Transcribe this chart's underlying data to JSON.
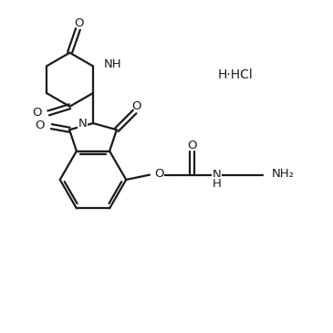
{
  "background_color": "#ffffff",
  "line_color": "#1a1a1a",
  "line_width": 1.6,
  "font_size": 9.5,
  "figsize": [
    3.65,
    3.65
  ],
  "dpi": 100,
  "HCl_label": "H·HCl",
  "NH2_label": "NH₂",
  "NH_label": "NH",
  "N_label": "N",
  "O_label": "O",
  "H_label": "H"
}
